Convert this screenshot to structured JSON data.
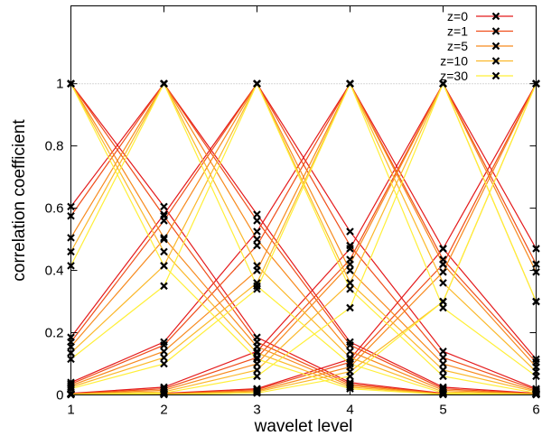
{
  "chart_data": {
    "type": "line",
    "title": "",
    "xlabel": "wavelet level",
    "ylabel": "correlation coefficient",
    "x": [
      1,
      2,
      3,
      4,
      5,
      6
    ],
    "xlim": [
      1,
      6
    ],
    "ylim": [
      0,
      1.25
    ],
    "xticks": [
      "1",
      "2",
      "3",
      "4",
      "5",
      "6"
    ],
    "yticks": [
      {
        "v": 0,
        "label": "0"
      },
      {
        "v": 0.2,
        "label": "0.2"
      },
      {
        "v": 0.4,
        "label": "0.4"
      },
      {
        "v": 0.6,
        "label": "0.6"
      },
      {
        "v": 0.8,
        "label": "0.8"
      },
      {
        "v": 1,
        "label": "1"
      }
    ],
    "reference_line": 1,
    "legend_position": "top-right",
    "series": [
      {
        "name": "z=0",
        "color": "#e41a1c",
        "rows": [
          [
            1,
            0.605,
            0.185,
            0.04,
            0.005,
            0.003
          ],
          [
            0.605,
            1,
            0.58,
            0.17,
            0.025,
            0.005
          ],
          [
            0.185,
            0.58,
            1,
            0.525,
            0.14,
            0.02
          ],
          [
            0.04,
            0.17,
            0.525,
            1,
            0.47,
            0.115
          ],
          [
            0.005,
            0.025,
            0.14,
            0.47,
            1,
            0.47
          ],
          [
            0.003,
            0.005,
            0.02,
            0.115,
            0.47,
            1
          ]
        ]
      },
      {
        "name": "z=1",
        "color": "#f04e1a",
        "rows": [
          [
            1,
            0.575,
            0.17,
            0.035,
            0.004,
            0.002
          ],
          [
            0.575,
            1,
            0.56,
            0.16,
            0.02,
            0.004
          ],
          [
            0.17,
            0.56,
            1,
            0.48,
            0.12,
            0.017
          ],
          [
            0.035,
            0.16,
            0.48,
            1,
            0.435,
            0.105
          ],
          [
            0.004,
            0.02,
            0.12,
            0.435,
            1,
            0.42
          ],
          [
            0.002,
            0.004,
            0.017,
            0.105,
            0.42,
            1
          ]
        ]
      },
      {
        "name": "z=5",
        "color": "#f78a1e",
        "rows": [
          [
            1,
            0.505,
            0.155,
            0.03,
            0.003,
            0.002
          ],
          [
            0.505,
            1,
            0.5,
            0.14,
            0.015,
            0.003
          ],
          [
            0.155,
            0.5,
            1,
            0.4,
            0.1,
            0.013
          ],
          [
            0.03,
            0.14,
            0.4,
            1,
            0.42,
            0.09
          ],
          [
            0.003,
            0.015,
            0.1,
            0.42,
            1,
            0.395
          ],
          [
            0.002,
            0.003,
            0.013,
            0.09,
            0.395,
            1
          ]
        ]
      },
      {
        "name": "z=10",
        "color": "#fbb82a",
        "rows": [
          [
            1,
            0.46,
            0.135,
            0.025,
            0.002,
            0.001
          ],
          [
            0.46,
            1,
            0.415,
            0.12,
            0.01,
            0.002
          ],
          [
            0.135,
            0.415,
            1,
            0.36,
            0.08,
            0.01
          ],
          [
            0.025,
            0.12,
            0.36,
            1,
            0.36,
            0.075
          ],
          [
            0.002,
            0.01,
            0.08,
            0.36,
            1,
            0.3
          ],
          [
            0.001,
            0.002,
            0.01,
            0.075,
            0.3,
            1
          ]
        ]
      },
      {
        "name": "z=30",
        "color": "#ffef38",
        "rows": [
          [
            1,
            0.415,
            0.115,
            0.02,
            0.001,
            0.001
          ],
          [
            0.415,
            1,
            0.35,
            0.1,
            0.006,
            0.001
          ],
          [
            0.115,
            0.35,
            1,
            0.34,
            0.06,
            0.006
          ],
          [
            0.02,
            0.1,
            0.34,
            1,
            0.28,
            0.06
          ],
          [
            0.001,
            0.006,
            0.06,
            0.28,
            1,
            0.3
          ],
          [
            0.001,
            0.001,
            0.006,
            0.06,
            0.3,
            1
          ]
        ]
      }
    ]
  }
}
